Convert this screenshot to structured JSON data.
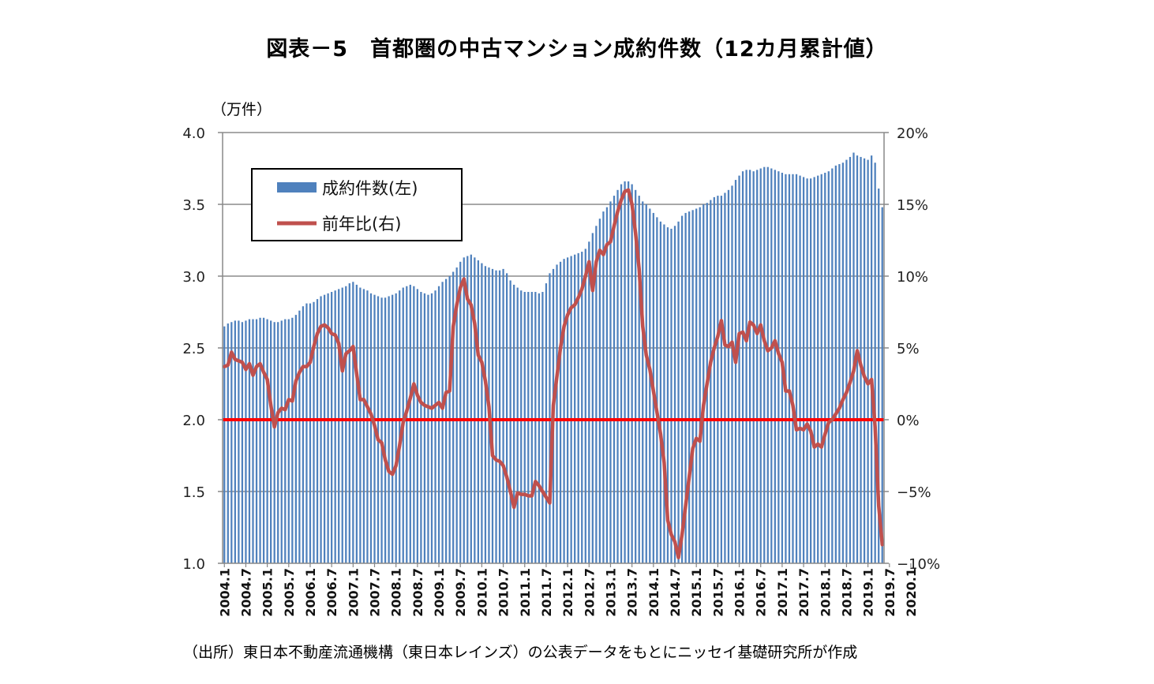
{
  "title": "図表－5　首都圏の中古マンション成約件数（12カ月累計値）",
  "unit_label": "（万件）",
  "source": "（出所）東日本不動産流通機構（東日本レインズ）の公表データをもとにニッセイ基礎研究所が作成",
  "colors": {
    "bar": "#4f81bd",
    "line": "#c0504d",
    "zero_line": "#ff0000",
    "grid": "#8c8c8c"
  },
  "chart_data": {
    "type": "bar+line",
    "x_ticks": [
      "2004.1",
      "2004.7",
      "2005.1",
      "2005.7",
      "2006.1",
      "2006.7",
      "2007.1",
      "2007.7",
      "2008.1",
      "2008.7",
      "2009.1",
      "2009.7",
      "2010.1",
      "2010.7",
      "2011.1",
      "2011.7",
      "2012.1",
      "2012.7",
      "2013.1",
      "2013.7",
      "2014.1",
      "2014.7",
      "2015.1",
      "2015.7",
      "2016.1",
      "2016.7",
      "2017.1",
      "2017.7",
      "2018.1",
      "2018.7",
      "2019.1",
      "2019.7",
      "2020.1"
    ],
    "y_left": {
      "label": "（万件）",
      "lim": [
        1.0,
        4.0
      ],
      "ticks": [
        "1.0",
        "1.5",
        "2.0",
        "2.5",
        "3.0",
        "3.5",
        "4.0"
      ]
    },
    "y_right": {
      "lim": [
        -10,
        20
      ],
      "ticks": [
        "−10%",
        "−5%",
        "0%",
        "5%",
        "10%",
        "15%",
        "20%"
      ]
    },
    "grid": "horizontal",
    "legend": {
      "placement": "upper-left",
      "entries": [
        "成約件数(左)",
        "前年比(右)"
      ]
    },
    "series": [
      {
        "name": "成約件数(左)",
        "type": "bar",
        "axis": "left",
        "values": [
          2.65,
          2.67,
          2.68,
          2.69,
          2.69,
          2.68,
          2.69,
          2.7,
          2.7,
          2.7,
          2.71,
          2.71,
          2.7,
          2.69,
          2.68,
          2.68,
          2.69,
          2.7,
          2.7,
          2.71,
          2.73,
          2.76,
          2.79,
          2.81,
          2.81,
          2.82,
          2.84,
          2.86,
          2.87,
          2.88,
          2.89,
          2.9,
          2.91,
          2.92,
          2.93,
          2.95,
          2.96,
          2.94,
          2.92,
          2.91,
          2.9,
          2.88,
          2.87,
          2.86,
          2.85,
          2.85,
          2.86,
          2.87,
          2.88,
          2.9,
          2.92,
          2.93,
          2.94,
          2.93,
          2.91,
          2.89,
          2.88,
          2.87,
          2.88,
          2.9,
          2.93,
          2.96,
          2.98,
          3.0,
          3.03,
          3.06,
          3.1,
          3.13,
          3.14,
          3.15,
          3.13,
          3.11,
          3.09,
          3.07,
          3.06,
          3.05,
          3.04,
          3.04,
          3.05,
          3.02,
          2.97,
          2.94,
          2.92,
          2.9,
          2.89,
          2.89,
          2.89,
          2.89,
          2.88,
          2.89,
          2.95,
          3.02,
          3.05,
          3.08,
          3.1,
          3.12,
          3.13,
          3.14,
          3.15,
          3.16,
          3.17,
          3.19,
          3.24,
          3.3,
          3.35,
          3.4,
          3.45,
          3.48,
          3.52,
          3.56,
          3.6,
          3.64,
          3.66,
          3.66,
          3.64,
          3.6,
          3.56,
          3.52,
          3.5,
          3.47,
          3.44,
          3.41,
          3.38,
          3.36,
          3.34,
          3.33,
          3.35,
          3.38,
          3.42,
          3.44,
          3.45,
          3.46,
          3.47,
          3.48,
          3.5,
          3.51,
          3.53,
          3.55,
          3.56,
          3.56,
          3.58,
          3.6,
          3.63,
          3.67,
          3.7,
          3.73,
          3.74,
          3.74,
          3.73,
          3.74,
          3.75,
          3.76,
          3.76,
          3.75,
          3.74,
          3.73,
          3.72,
          3.71,
          3.71,
          3.71,
          3.71,
          3.7,
          3.69,
          3.68,
          3.68,
          3.69,
          3.7,
          3.71,
          3.72,
          3.73,
          3.75,
          3.77,
          3.78,
          3.79,
          3.81,
          3.83,
          3.86,
          3.84,
          3.83,
          3.82,
          3.81,
          3.84,
          3.79,
          3.61,
          3.48
        ]
      },
      {
        "name": "前年比(右)",
        "type": "line",
        "axis": "right",
        "values": [
          3.7,
          3.8,
          4.7,
          4.2,
          4.1,
          4.0,
          3.5,
          3.9,
          3.1,
          3.7,
          3.9,
          3.3,
          2.8,
          1.0,
          -0.5,
          0.5,
          0.8,
          0.7,
          1.4,
          1.3,
          2.7,
          3.3,
          3.7,
          3.7,
          4.0,
          5.1,
          6.0,
          6.5,
          6.6,
          6.4,
          6.0,
          5.9,
          5.3,
          3.4,
          4.6,
          4.8,
          5.1,
          3.2,
          1.4,
          1.4,
          0.9,
          0.4,
          -0.4,
          -1.4,
          -1.6,
          -2.8,
          -3.6,
          -3.8,
          -3.2,
          -1.8,
          -0.2,
          0.6,
          1.5,
          2.5,
          1.7,
          1.2,
          1.0,
          0.9,
          0.8,
          1.0,
          1.2,
          0.8,
          1.9,
          2.0,
          6.5,
          8.0,
          9.2,
          9.8,
          8.4,
          8.0,
          6.7,
          4.5,
          4.0,
          2.7,
          0.9,
          -2.5,
          -2.8,
          -2.9,
          -3.2,
          -4.0,
          -5.0,
          -6.1,
          -5.1,
          -5.2,
          -5.2,
          -5.3,
          -5.3,
          -4.3,
          -4.6,
          -5.0,
          -5.4,
          -5.8,
          1.0,
          3.0,
          5.0,
          6.5,
          7.3,
          7.8,
          8.0,
          8.5,
          9.1,
          10.0,
          11.0,
          9.0,
          11.0,
          11.8,
          11.5,
          12.2,
          12.4,
          13.5,
          14.5,
          15.3,
          15.9,
          16.0,
          15.0,
          13.0,
          10.5,
          6.5,
          4.5,
          3.5,
          2.0,
          0.5,
          -1.0,
          -3.0,
          -7.0,
          -8.0,
          -8.5,
          -9.6,
          -8.0,
          -6.0,
          -4.0,
          -2.0,
          -1.3,
          -1.5,
          1.0,
          2.5,
          4.0,
          5.0,
          5.8,
          6.9,
          5.2,
          5.1,
          5.4,
          4.0,
          6.0,
          6.1,
          5.5,
          6.8,
          6.6,
          6.0,
          6.6,
          5.5,
          4.8,
          5.0,
          5.5,
          4.6,
          4.0,
          2.0,
          2.0,
          1.0,
          -0.7,
          -0.6,
          -0.7,
          -0.3,
          -0.8,
          -1.9,
          -1.7,
          -1.9,
          -1.0,
          -0.2,
          0.0,
          0.4,
          0.8,
          1.4,
          1.9,
          2.6,
          3.4,
          4.8,
          3.8,
          3.0,
          2.5,
          2.8,
          -0.5,
          -6.0,
          -8.7
        ]
      }
    ]
  }
}
